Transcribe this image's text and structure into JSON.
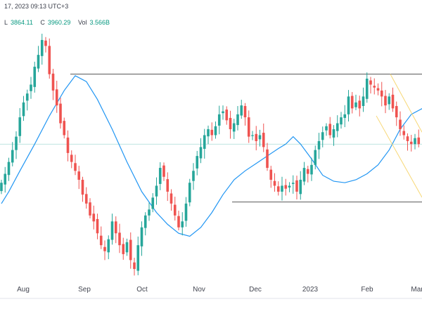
{
  "header": {
    "timestamp_text": "17, 2023 09:13 UTC+3",
    "ohlc": [
      {
        "key": "L",
        "value": "3864.11"
      },
      {
        "key": "C",
        "value": "3960.29"
      },
      {
        "key": "Vol",
        "value": "3.566B"
      }
    ]
  },
  "chart_data": {
    "type": "candlestick",
    "x_tick_labels": [
      "Aug",
      "Sep",
      "Oct",
      "Nov",
      "Dec",
      "2023",
      "Feb",
      "Mar"
    ],
    "y_axis_labels": [],
    "colors": {
      "up": "#26a69a",
      "down": "#ef5350",
      "moving_average": "#2196f3",
      "horizontal_lines": "#222222",
      "channel": "#f7d774",
      "price_line": "#26a69a"
    },
    "horizontal_levels": [
      {
        "label": "resistance",
        "y": 4195
      },
      {
        "label": "support",
        "y": 3765
      }
    ],
    "channel": {
      "upper": [
        {
          "month": "Feb",
          "y": 4195
        },
        {
          "month": "Mar",
          "y": 4000
        }
      ],
      "lower": [
        {
          "month": "Feb",
          "y": 4055
        },
        {
          "month": "Mar",
          "y": 3840
        }
      ]
    },
    "moving_average": [
      {
        "t": 0,
        "y": 3760
      },
      {
        "t": 2,
        "y": 3800
      },
      {
        "t": 5,
        "y": 3870
      },
      {
        "t": 9,
        "y": 3960
      },
      {
        "t": 13,
        "y": 4055
      },
      {
        "t": 17,
        "y": 4140
      },
      {
        "t": 20,
        "y": 4190
      },
      {
        "t": 23,
        "y": 4170
      },
      {
        "t": 26,
        "y": 4110
      },
      {
        "t": 30,
        "y": 4010
      },
      {
        "t": 34,
        "y": 3900
      },
      {
        "t": 38,
        "y": 3800
      },
      {
        "t": 42,
        "y": 3730
      },
      {
        "t": 45,
        "y": 3690
      },
      {
        "t": 48,
        "y": 3660
      },
      {
        "t": 51,
        "y": 3650
      },
      {
        "t": 54,
        "y": 3680
      },
      {
        "t": 57,
        "y": 3730
      },
      {
        "t": 60,
        "y": 3790
      },
      {
        "t": 63,
        "y": 3840
      },
      {
        "t": 66,
        "y": 3870
      },
      {
        "t": 69,
        "y": 3895
      },
      {
        "t": 72,
        "y": 3920
      },
      {
        "t": 75,
        "y": 3945
      },
      {
        "t": 77,
        "y": 3960
      },
      {
        "t": 79,
        "y": 3985
      },
      {
        "t": 81,
        "y": 3960
      },
      {
        "t": 84,
        "y": 3910
      },
      {
        "t": 87,
        "y": 3855
      },
      {
        "t": 90,
        "y": 3835
      },
      {
        "t": 93,
        "y": 3830
      },
      {
        "t": 96,
        "y": 3840
      },
      {
        "t": 99,
        "y": 3860
      },
      {
        "t": 102,
        "y": 3890
      },
      {
        "t": 105,
        "y": 3940
      },
      {
        "t": 108,
        "y": 4010
      },
      {
        "t": 111,
        "y": 4060
      },
      {
        "t": 114,
        "y": 4080
      },
      {
        "t": 117,
        "y": 4070
      },
      {
        "t": 120,
        "y": 4040
      },
      {
        "t": 123,
        "y": 4000
      }
    ],
    "closes": [
      3830,
      3860,
      3900,
      3940,
      3985,
      4050,
      4100,
      4130,
      4160,
      4220,
      4260,
      4310,
      4290,
      4195,
      4140,
      4090,
      4030,
      3990,
      3930,
      3900,
      3870,
      3840,
      3790,
      3760,
      3720,
      3700,
      3660,
      3620,
      3600,
      3640,
      3700,
      3660,
      3620,
      3590,
      3630,
      3570,
      3540,
      3620,
      3680,
      3720,
      3740,
      3780,
      3820,
      3880,
      3850,
      3800,
      3760,
      3720,
      3680,
      3700,
      3760,
      3830,
      3870,
      3920,
      3950,
      3990,
      4010,
      3990,
      4020,
      4060,
      4070,
      4040,
      4010,
      4030,
      4060,
      4090,
      4050,
      3985,
      3990,
      3970,
      3990,
      3950,
      3880,
      3840,
      3820,
      3800,
      3820,
      3810,
      3820,
      3830,
      3800,
      3840,
      3880,
      3860,
      3890,
      3940,
      3970,
      4000,
      4020,
      3990,
      4010,
      4030,
      4050,
      4060,
      4120,
      4080,
      4100,
      4080,
      4120,
      4180,
      4160,
      4150,
      4140,
      4120,
      4090,
      4120,
      4080,
      4050,
      4010,
      3990,
      3970,
      3960,
      3980,
      3960
    ]
  }
}
